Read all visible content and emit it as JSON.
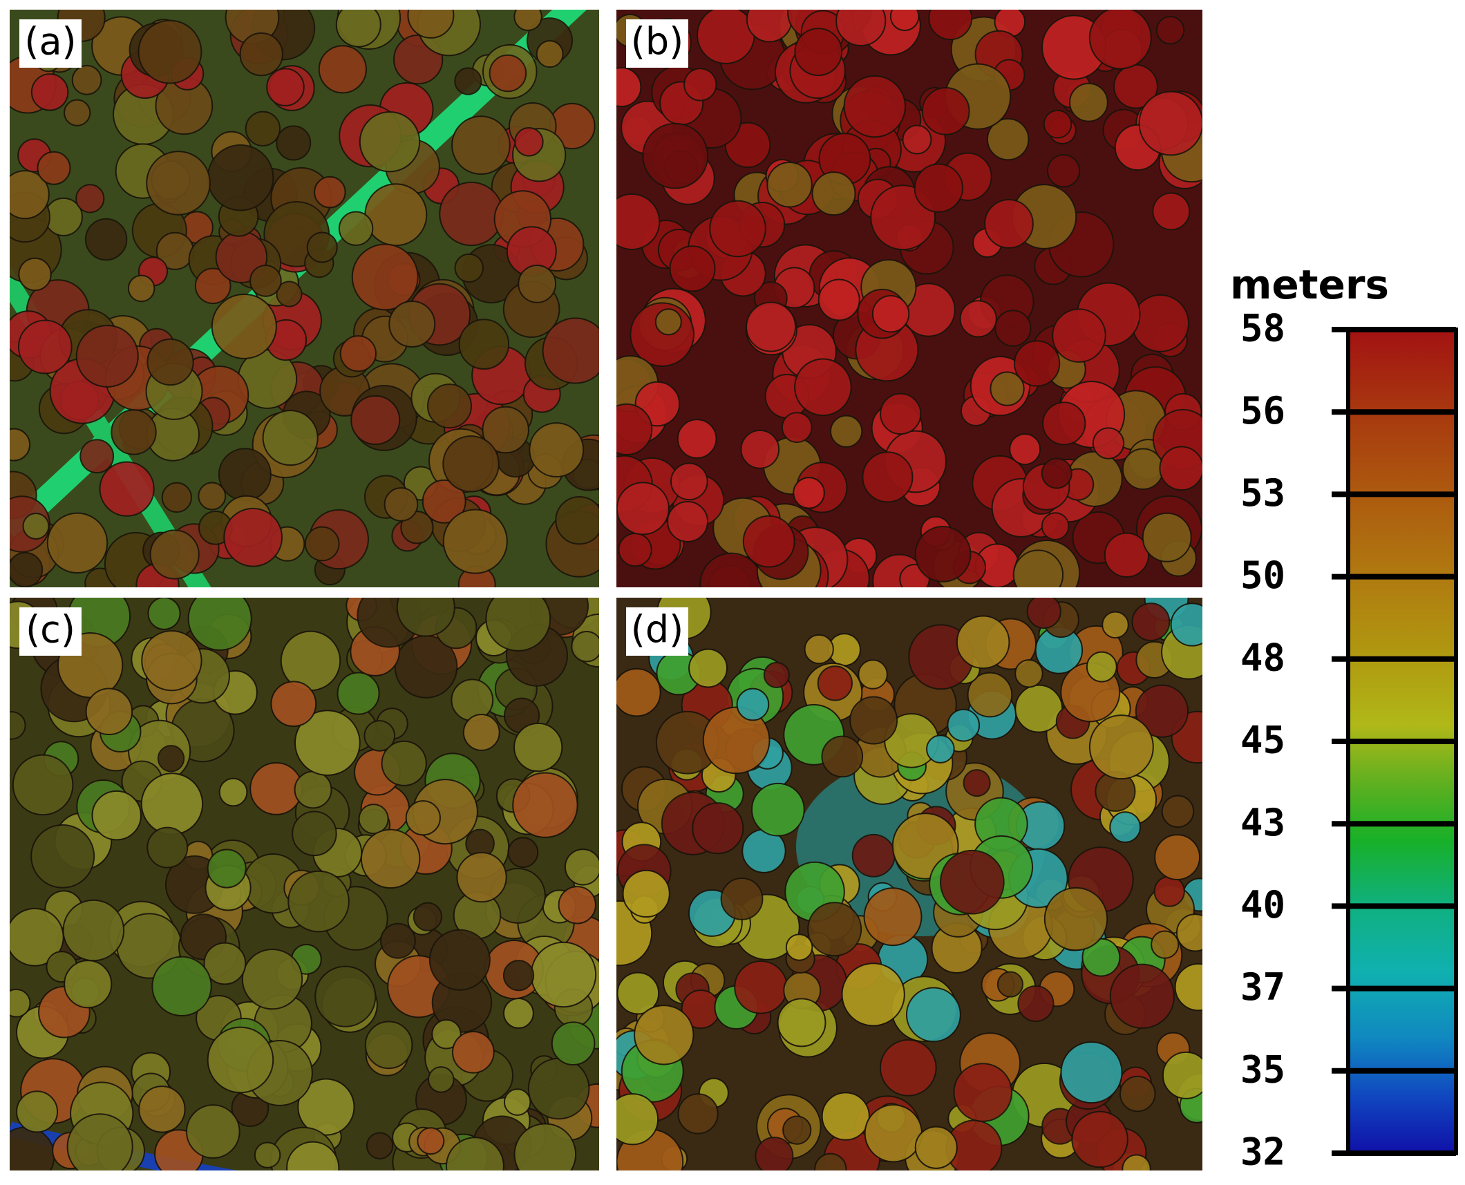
{
  "panels": [
    {
      "label": "(a)"
    },
    {
      "label": "(b)"
    },
    {
      "label": "(c)"
    },
    {
      "label": "(d)"
    }
  ],
  "colorbar": {
    "title": "meters",
    "ticks": [
      58,
      56,
      53,
      50,
      48,
      45,
      43,
      40,
      37,
      35,
      32
    ]
  }
}
